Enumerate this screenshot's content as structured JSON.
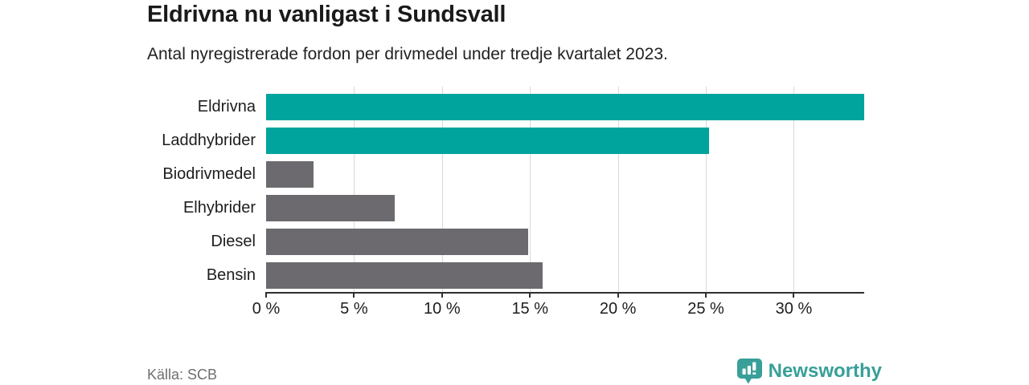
{
  "header": {
    "title": "Eldrivna nu vanligast i Sundsvall",
    "subtitle": "Antal nyregistrerade fordon per drivmedel under tredje kvartalet 2023."
  },
  "footer": {
    "source": "Källa: SCB",
    "brand_name": "Newsworthy"
  },
  "colors": {
    "highlight_bar": "#00a49c",
    "default_bar": "#6c6a6e",
    "gridline": "#d9d9d9",
    "axis": "#2f2f2f",
    "text": "#1d1d1d",
    "muted_text": "#6f6f6f",
    "brand_teal": "#389f99"
  },
  "chart_data": {
    "type": "bar",
    "orientation": "horizontal",
    "title": "Eldrivna nu vanligast i Sundsvall",
    "subtitle": "Antal nyregistrerade fordon per drivmedel under tredje kvartalet 2023.",
    "categories": [
      "Eldrivna",
      "Laddhybrider",
      "Biodrivmedel",
      "Elhybrider",
      "Diesel",
      "Bensin"
    ],
    "values": [
      34.0,
      25.2,
      2.7,
      7.3,
      14.9,
      15.7
    ],
    "unit": "%",
    "bar_colors": [
      "#00a49c",
      "#00a49c",
      "#6c6a6e",
      "#6c6a6e",
      "#6c6a6e",
      "#6c6a6e"
    ],
    "xlim": [
      0,
      34
    ],
    "xticks": [
      0,
      5,
      10,
      15,
      20,
      25,
      30
    ],
    "xtick_format": "{v} %",
    "grid": "vertical-only",
    "legend": "none",
    "source": "Källa: SCB"
  }
}
